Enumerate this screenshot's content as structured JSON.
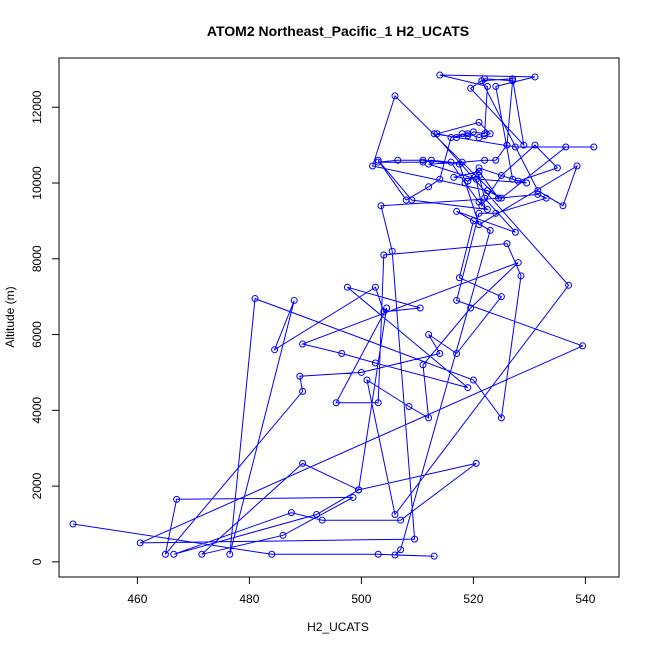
{
  "chart_data": {
    "type": "line",
    "title": "ATOM2 Northeast_Pacific_1 H2_UCATS",
    "xlabel": "H2_UCATS",
    "ylabel": "Altitude (m)",
    "xlim": [
      446,
      546
    ],
    "ylim": [
      -400,
      13300
    ],
    "xticks": [
      460,
      480,
      500,
      520,
      540
    ],
    "yticks": [
      0,
      2000,
      4000,
      6000,
      8000,
      10000,
      12000
    ],
    "grid": false,
    "legend": "none",
    "color": "#0000ff",
    "series": [
      {
        "x": [
          448.5,
          484.0,
          503.0,
          513.0,
          506.0,
          507.0,
          523.0,
          517.0,
          527.5,
          522.0,
          521.0,
          519.0,
          521.0,
          528.0,
          535.0,
          531.0,
          525.0,
          521.5,
          520.5,
          512.0,
          518.0,
          522.0,
          524.0,
          526.0,
          527.0,
          522.0,
          519.5,
          529.0,
          527.0,
          521.5,
          531.5,
          536.0,
          538.5,
          521.0,
          517.5,
          511.0,
          506.5,
          503.0,
          511.0,
          512.5,
          516.0,
          518.5,
          521.0,
          522.5,
          509.0,
          503.0,
          508.0,
          512.0,
          514.0,
          516.0,
          519.0,
          521.0,
          522.0,
          523.0,
          521.0,
          513.5,
          517.0,
          518.0,
          519.0,
          520.0,
          522.0,
          522.5,
          514.0,
          531.0,
          524.0,
          527.0,
          529.5,
          516.5,
          521.0,
          524.5,
          531.5,
          533.0,
          524.0,
          521.0,
          517.0,
          539.5,
          460.5,
          509.5,
          505.5,
          503.5,
          524.5,
          506.0,
          502.0,
          522.5,
          525.0,
          536.5,
          541.5,
          527.5,
          513.0,
          537.0,
          506.0,
          501.0,
          508.5,
          512.0,
          511.0,
          519.5,
          528.0,
          489.5,
          496.5,
          502.5,
          519.0,
          497.5,
          510.5,
          504.0,
          502.5,
          484.5,
          488.0,
          476.5,
          481.0,
          520.0,
          525.0,
          528.5,
          526.0,
          504.0,
          503.0,
          495.5,
          504.5,
          499.5,
          492.0,
          466.5,
          487.5,
          493.0,
          507.0,
          520.5,
          499.5,
          489.5,
          471.5,
          486.0,
          498.5,
          467.0,
          465.0,
          489.5,
          489.0,
          500.0,
          514.0,
          512.0,
          517.0,
          525.0,
          517.5,
          520.0
        ],
        "y": [
          1000,
          200,
          200,
          150,
          180,
          320,
          8750,
          9250,
          8700,
          9600,
          10200,
          10050,
          10400,
          10050,
          10400,
          11000,
          10200,
          9400,
          10100,
          10500,
          10550,
          10600,
          10600,
          11000,
          12700,
          12750,
          12500,
          11000,
          12750,
          12700,
          9800,
          9400,
          10450,
          8900,
          10500,
          10600,
          10600,
          10550,
          10550,
          10600,
          10550,
          10000,
          9500,
          9300,
          9550,
          10600,
          9550,
          9900,
          10100,
          11200,
          11300,
          11200,
          11250,
          11300,
          11600,
          11300,
          11200,
          11300,
          11250,
          11350,
          11300,
          12550,
          12850,
          12800,
          12550,
          10100,
          10000,
          10150,
          10300,
          9600,
          9700,
          9600,
          9200,
          9200,
          6900,
          5700,
          500,
          600,
          8200,
          9400,
          9600,
          12300,
          10450,
          9800,
          9600,
          10950,
          10950,
          10950,
          11300,
          7300,
          1250,
          4800,
          4100,
          3800,
          5200,
          6700,
          7900,
          5750,
          5500,
          5250,
          4600,
          7250,
          6700,
          6600,
          7250,
          5600,
          6900,
          200,
          6950,
          4800,
          3800,
          7550,
          8400,
          8100,
          4200,
          4200,
          6700,
          1900,
          1250,
          200,
          1300,
          1100,
          1100,
          2600,
          1900,
          2600,
          200,
          700,
          1700,
          1650,
          200,
          4500,
          4900,
          5000,
          5500,
          6000,
          5500,
          7000,
          7500,
          9000
        ]
      }
    ]
  }
}
